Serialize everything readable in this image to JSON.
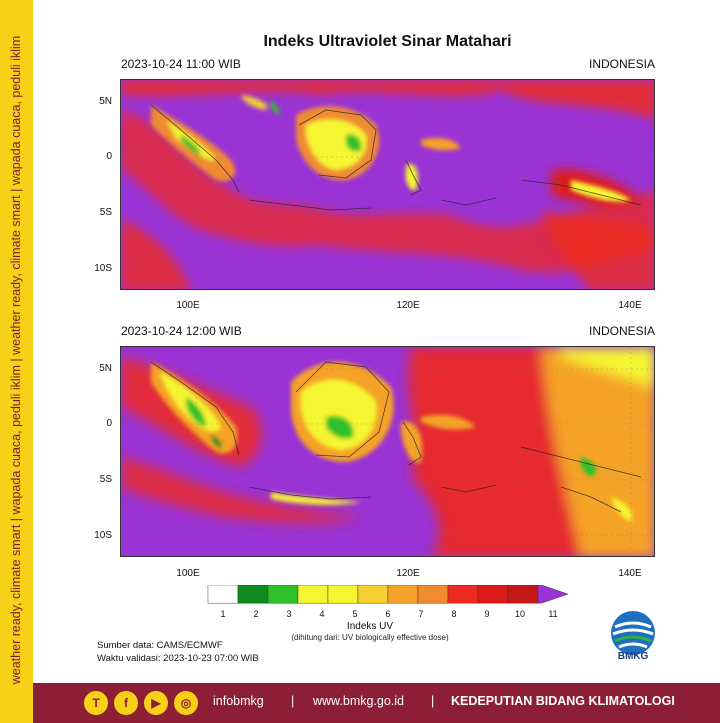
{
  "side_banner": "weather ready, climate smart | wapada cuaca, peduli iklim | weather ready, climate smart | wapada cuaca, peduli iklim",
  "title": "Indeks Ultraviolet Sinar Matahari",
  "maps": [
    {
      "time": "2023-10-24  11:00 WIB",
      "region": "INDONESIA"
    },
    {
      "time": "2023-10-24  12:00 WIB",
      "region": "INDONESIA"
    }
  ],
  "lat_labels": [
    "5N",
    "0",
    "5S",
    "10S"
  ],
  "lon_labels": [
    "100E",
    "120E",
    "140E"
  ],
  "colorbar": {
    "title": "Indeks UV",
    "subtitle": "(dihitung dari: UV biologically effective dose)",
    "ticks": [
      "1",
      "2",
      "3",
      "4",
      "5",
      "6",
      "7",
      "8",
      "9",
      "10",
      "11"
    ],
    "colors": [
      "#ffffff",
      "#0f8a1e",
      "#2ec02b",
      "#f5f531",
      "#f5f531",
      "#f5d030",
      "#f5a328",
      "#f08b30",
      "#ee2a20",
      "#dd1a1a",
      "#c41818",
      "#9a33d6"
    ]
  },
  "source": "Sumber data: CAMS/ECMWF",
  "validity": "Waktu validasi: 2023-10-23 07:00 WIB",
  "logo_text": "BMKG",
  "footer": {
    "social": [
      "T",
      "f",
      "▶",
      "◎"
    ],
    "handle": "infobmkg",
    "sep1": "|",
    "website": "www.bmkg.go.id",
    "sep2": "|",
    "unit": "KEDEPUTIAN BIDANG KLIMATOLOGI"
  }
}
